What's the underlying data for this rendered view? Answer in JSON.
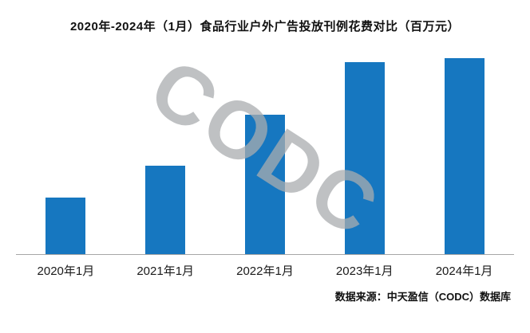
{
  "chart_data": {
    "type": "bar",
    "title": "2020年-2024年（1月）食品行业户外广告投放刊例花费对比（百万元）",
    "categories": [
      "2020年1月",
      "2021年1月",
      "2022年1月",
      "2023年1月",
      "2024年1月"
    ],
    "values": [
      29,
      45,
      71,
      98,
      100
    ],
    "xlabel": "",
    "ylabel": "",
    "ylim": [
      0,
      100
    ],
    "grid": false,
    "legend_position": "none",
    "bar_color": "#1677C0",
    "axis_line_color": "#a6a6a6"
  },
  "watermark": {
    "text": "CODC",
    "color": "#aaacaf"
  },
  "source": {
    "text": "数据来源：中天盈信（CODC）数据库"
  }
}
